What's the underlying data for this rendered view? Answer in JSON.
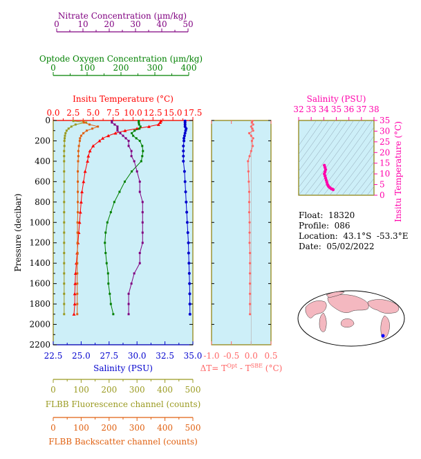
{
  "colors": {
    "nitrate": "#800080",
    "oxygen": "#008000",
    "temperature": "#ff0000",
    "salinity": "#0000cd",
    "fluorescence": "#9a9a20",
    "backscatter": "#e06010",
    "delta": "#ff6666",
    "ts": "#ff00aa",
    "panel": "#cdeff8",
    "frame": "#8b7d00"
  },
  "axes": {
    "nitrate": {
      "label": "Nitrate Concentration (µm/kg)",
      "range": [
        0,
        50
      ],
      "ticks": [
        "0",
        "10",
        "20",
        "30",
        "40",
        "50"
      ]
    },
    "oxygen": {
      "label": "Optode Oxygen Concentration (µm/kg)",
      "range": [
        0,
        400
      ],
      "ticks": [
        "0",
        "100",
        "200",
        "300",
        "400"
      ]
    },
    "temperature": {
      "label": "Insitu Temperature (°C)",
      "range": [
        0,
        17.5
      ],
      "ticks": [
        "0.0",
        "2.5",
        "5.0",
        "7.5",
        "10.0",
        "12.5",
        "15.0",
        "17.5"
      ]
    },
    "salinity": {
      "label": "Salinity (PSU)",
      "range": [
        22.5,
        35
      ],
      "ticks": [
        "22.5",
        "25.0",
        "27.5",
        "30.0",
        "32.5",
        "35.0"
      ]
    },
    "pressure": {
      "label": "Pressure (decibar)",
      "range": [
        0,
        2200
      ],
      "ticks": [
        "0",
        "200",
        "400",
        "600",
        "800",
        "1000",
        "1200",
        "1400",
        "1600",
        "1800",
        "2000",
        "2200"
      ]
    },
    "fluorescence": {
      "label": "FLBB Fluorescence channel (counts)",
      "range": [
        0,
        500
      ],
      "ticks": [
        "0",
        "100",
        "200",
        "300",
        "400",
        "500"
      ]
    },
    "backscatter": {
      "label": "FLBB Backscatter channel (counts)",
      "range": [
        0,
        500
      ],
      "ticks": [
        "0",
        "100",
        "200",
        "300",
        "400",
        "500"
      ]
    },
    "delta": {
      "label_prefix": "ΔT= T",
      "sup1": "Opt",
      "label_mid": " - T",
      "sup2": "SBE",
      "label_suffix": " (°C)",
      "range": [
        -1.0,
        0.5
      ],
      "ticks": [
        "-1.0",
        "-0.5",
        "0.0",
        "0.5"
      ]
    },
    "ts_salinity": {
      "label": "Salinity (PSU)",
      "range": [
        32,
        38
      ],
      "ticks": [
        "32",
        "33",
        "34",
        "35",
        "36",
        "37",
        "38"
      ]
    },
    "ts_temperature": {
      "label": "Insitu Temperature (°C)",
      "range": [
        0,
        35
      ],
      "ticks": [
        "0",
        "5",
        "10",
        "15",
        "20",
        "25",
        "30",
        "35"
      ]
    }
  },
  "info": {
    "float": "Float:  18320",
    "profile": "Profile:  086",
    "location": "Location:  43.1°S  -53.3°E",
    "date": "Date:  05/02/2022"
  },
  "chart_data": {
    "type": "line",
    "pressure": [
      5,
      20,
      40,
      60,
      80,
      100,
      125,
      150,
      175,
      200,
      250,
      300,
      350,
      400,
      500,
      600,
      700,
      800,
      900,
      1000,
      1100,
      1200,
      1300,
      1400,
      1500,
      1600,
      1700,
      1800,
      1900
    ],
    "series": [
      {
        "name": "Insitu Temperature (°C)",
        "key": "temperature",
        "values": [
          13.5,
          13.4,
          13.2,
          12.0,
          10.5,
          9.0,
          7.8,
          6.9,
          6.2,
          5.8,
          5.0,
          4.6,
          4.4,
          4.3,
          4.0,
          3.8,
          3.6,
          3.5,
          3.4,
          3.3,
          3.2,
          3.1,
          3.0,
          2.9,
          2.8,
          2.75,
          2.7,
          2.7,
          2.6
        ]
      },
      {
        "name": "Salinity (PSU)",
        "key": "salinity",
        "values": [
          34.3,
          34.3,
          34.3,
          34.3,
          34.4,
          34.35,
          34.3,
          34.25,
          34.2,
          34.2,
          34.15,
          34.15,
          34.15,
          34.15,
          34.25,
          34.3,
          34.35,
          34.4,
          34.45,
          34.5,
          34.55,
          34.6,
          34.62,
          34.65,
          34.68,
          34.7,
          34.72,
          34.73,
          34.74
        ]
      },
      {
        "name": "Optode Oxygen Concentration (µm/kg)",
        "key": "oxygen",
        "values": [
          245,
          245,
          246,
          250,
          247,
          233,
          225,
          229,
          238,
          248,
          255,
          257,
          255,
          252,
          225,
          205,
          190,
          175,
          165,
          155,
          150,
          148,
          150,
          153,
          157,
          158,
          162,
          165,
          172
        ]
      },
      {
        "name": "Nitrate Concentration (µm/kg)",
        "key": "nitrate",
        "values": [
          21,
          21,
          22,
          23,
          23,
          23,
          24,
          25,
          26,
          27,
          27,
          28,
          28,
          29,
          30,
          31,
          31,
          32,
          32,
          32,
          32,
          32,
          31,
          31,
          29,
          28,
          27,
          27,
          27
        ]
      },
      {
        "name": "FLBB Fluorescence channel (counts)",
        "key": "fluorescence",
        "values": [
          72,
          118,
          80,
          65,
          55,
          48,
          44,
          42,
          41,
          40,
          40,
          39,
          39,
          39,
          39,
          39,
          39,
          39,
          39,
          39,
          39,
          39,
          39,
          39,
          39,
          39,
          39,
          39,
          39
        ]
      },
      {
        "name": "FLBB Backscatter channel (counts)",
        "key": "backscatter",
        "values": [
          108,
          110,
          130,
          160,
          140,
          120,
          108,
          100,
          96,
          95,
          92,
          90,
          90,
          89,
          88,
          88,
          88,
          88,
          88,
          87,
          87,
          87,
          87,
          86,
          86,
          86,
          86,
          86,
          86
        ]
      },
      {
        "name": "ΔT",
        "key": "delta",
        "values": [
          0.03,
          0.02,
          0.05,
          0.0,
          0.03,
          0.05,
          -0.05,
          0.0,
          0.05,
          0.02,
          0.04,
          0.0,
          -0.04,
          -0.08,
          -0.07,
          -0.06,
          -0.05,
          -0.05,
          -0.05,
          -0.04,
          -0.04,
          -0.04,
          -0.03,
          -0.03,
          -0.03,
          -0.03,
          -0.03,
          -0.03,
          -0.03
        ]
      }
    ],
    "ts": {
      "salinity": [
        34.05,
        34.1,
        34.15,
        34.1,
        34.05,
        34.1,
        34.15,
        34.2,
        34.25,
        34.3,
        34.35,
        34.4,
        34.5,
        34.6,
        34.7,
        34.75
      ],
      "temperature": [
        14.0,
        13.0,
        12.0,
        11.0,
        10.0,
        9.0,
        8.0,
        7.0,
        6.0,
        5.0,
        4.5,
        4.0,
        3.5,
        3.0,
        2.8,
        2.6
      ]
    },
    "location": {
      "lat": -43.1,
      "lon": -53.3
    }
  }
}
